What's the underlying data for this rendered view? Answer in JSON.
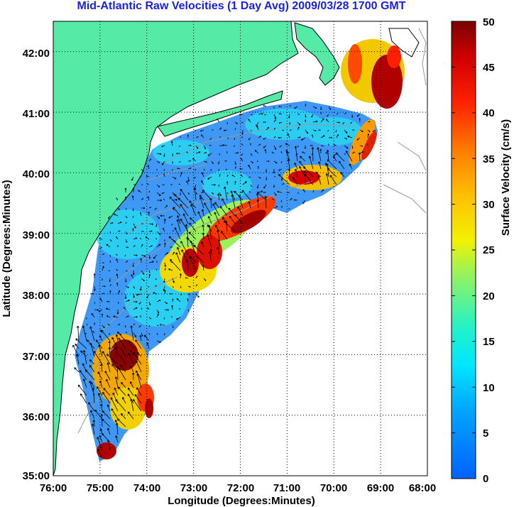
{
  "title": "Mid-Atlantic Raw Velocities (1 Day Avg) 2009/03/28 1700 GMT",
  "colors": {
    "title": "#1a22e6",
    "land": "#55eaa6",
    "coast": "#000000",
    "bathymetry": "#9a9a9a",
    "arrows": "#000000",
    "grid": "#000000"
  },
  "map": {
    "xlabel": "Longitude (Degrees:Minutes)",
    "ylabel": "Latitude (Degrees:Minutes)",
    "lon_range": [
      -76,
      -68
    ],
    "lat_range": [
      35,
      42.5
    ],
    "lon_ticks": [
      "76:00",
      "75:00",
      "74:00",
      "73:00",
      "72:00",
      "71:00",
      "70:00",
      "69:00",
      "68:00"
    ],
    "lat_ticks": [
      "35:00",
      "36:00",
      "37:00",
      "38:00",
      "39:00",
      "40:00",
      "41:00",
      "42:00"
    ],
    "grid": "dotted"
  },
  "colorbar": {
    "label": "Surface Velocity (cm/s)",
    "ticks": [
      "0",
      "5",
      "10",
      "15",
      "20",
      "25",
      "30",
      "35",
      "40",
      "45",
      "50"
    ],
    "range": [
      0,
      50
    ],
    "colormap": "jet"
  }
}
